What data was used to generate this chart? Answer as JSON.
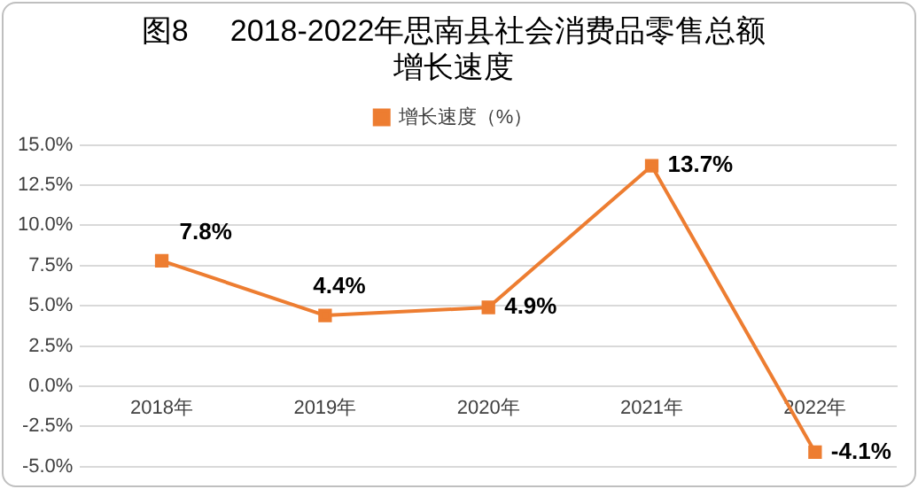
{
  "chart_data": {
    "type": "line",
    "title": "图8     2018-2022年思南县社会消费品零售总额",
    "subtitle": "增长速度",
    "categories": [
      "2018年",
      "2019年",
      "2020年",
      "2021年",
      "2022年"
    ],
    "series": [
      {
        "name": "增长速度（%）",
        "color": "#ed7d31",
        "values": [
          7.8,
          4.4,
          4.9,
          13.7,
          -4.1
        ],
        "value_labels": [
          "7.8%",
          "4.4%",
          "4.9%",
          "13.7%",
          "-4.1%"
        ]
      }
    ],
    "ylim": [
      -5,
      15
    ],
    "yticks": [
      {
        "value": -5,
        "label": "-5.0%"
      },
      {
        "value": -2.5,
        "label": "-2.5%"
      },
      {
        "value": 0,
        "label": "0.0%"
      },
      {
        "value": 2.5,
        "label": "2.5%"
      },
      {
        "value": 5,
        "label": "5.0%"
      },
      {
        "value": 7.5,
        "label": "7.5%"
      },
      {
        "value": 10,
        "label": "10.0%"
      },
      {
        "value": 12.5,
        "label": "12.5%"
      },
      {
        "value": 15,
        "label": "15.0%"
      }
    ],
    "grid": "y",
    "legend": "top",
    "marker": "square",
    "line_style": "solid"
  }
}
